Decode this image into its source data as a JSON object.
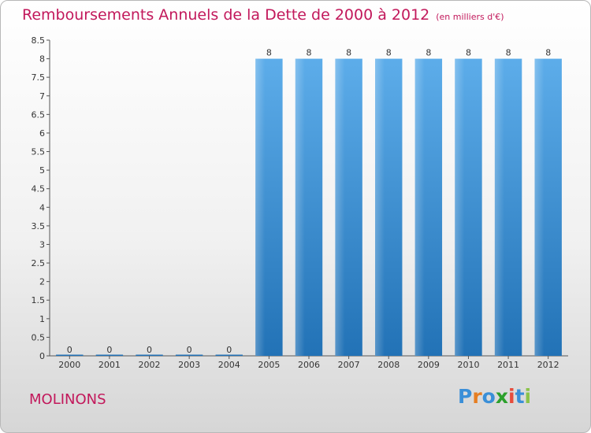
{
  "header": {
    "title": "Remboursements Annuels de la Dette de 2000 à 2012",
    "unit": "(en milliers d'€)"
  },
  "commune": "MOLINONS",
  "logo": {
    "letters": [
      "P",
      "r",
      "o",
      "x",
      "i",
      "t",
      "i"
    ],
    "colors": [
      "#3a8fd8",
      "#e67e22",
      "#3a8fd8",
      "#2ca02c",
      "#e74c3c",
      "#3a8fd8",
      "#8bc34a"
    ]
  },
  "chart_data": {
    "type": "bar",
    "title": "Remboursements Annuels de la Dette de 2000 à 2012",
    "categories": [
      "2000",
      "2001",
      "2002",
      "2003",
      "2004",
      "2005",
      "2006",
      "2007",
      "2008",
      "2009",
      "2010",
      "2011",
      "2012"
    ],
    "values": [
      0,
      0,
      0,
      0,
      0,
      8,
      8,
      8,
      8,
      8,
      8,
      8,
      8
    ],
    "data_labels": [
      "0",
      "0",
      "0",
      "0",
      "0",
      "8",
      "8",
      "8",
      "8",
      "8",
      "8",
      "8",
      "8"
    ],
    "ylim": [
      0,
      8.5
    ],
    "yticks": [
      "0",
      "0.5",
      "1",
      "1.5",
      "2",
      "2.5",
      "3",
      "3.5",
      "4",
      "4.5",
      "5",
      "5.5",
      "6",
      "6.5",
      "7",
      "7.5",
      "8",
      "8.5"
    ],
    "ytick_values": [
      0,
      0.5,
      1,
      1.5,
      2,
      2.5,
      3,
      3.5,
      4,
      4.5,
      5,
      5.5,
      6,
      6.5,
      7,
      7.5,
      8,
      8.5
    ],
    "grid": false,
    "bar_color": "#3a8fd8"
  }
}
